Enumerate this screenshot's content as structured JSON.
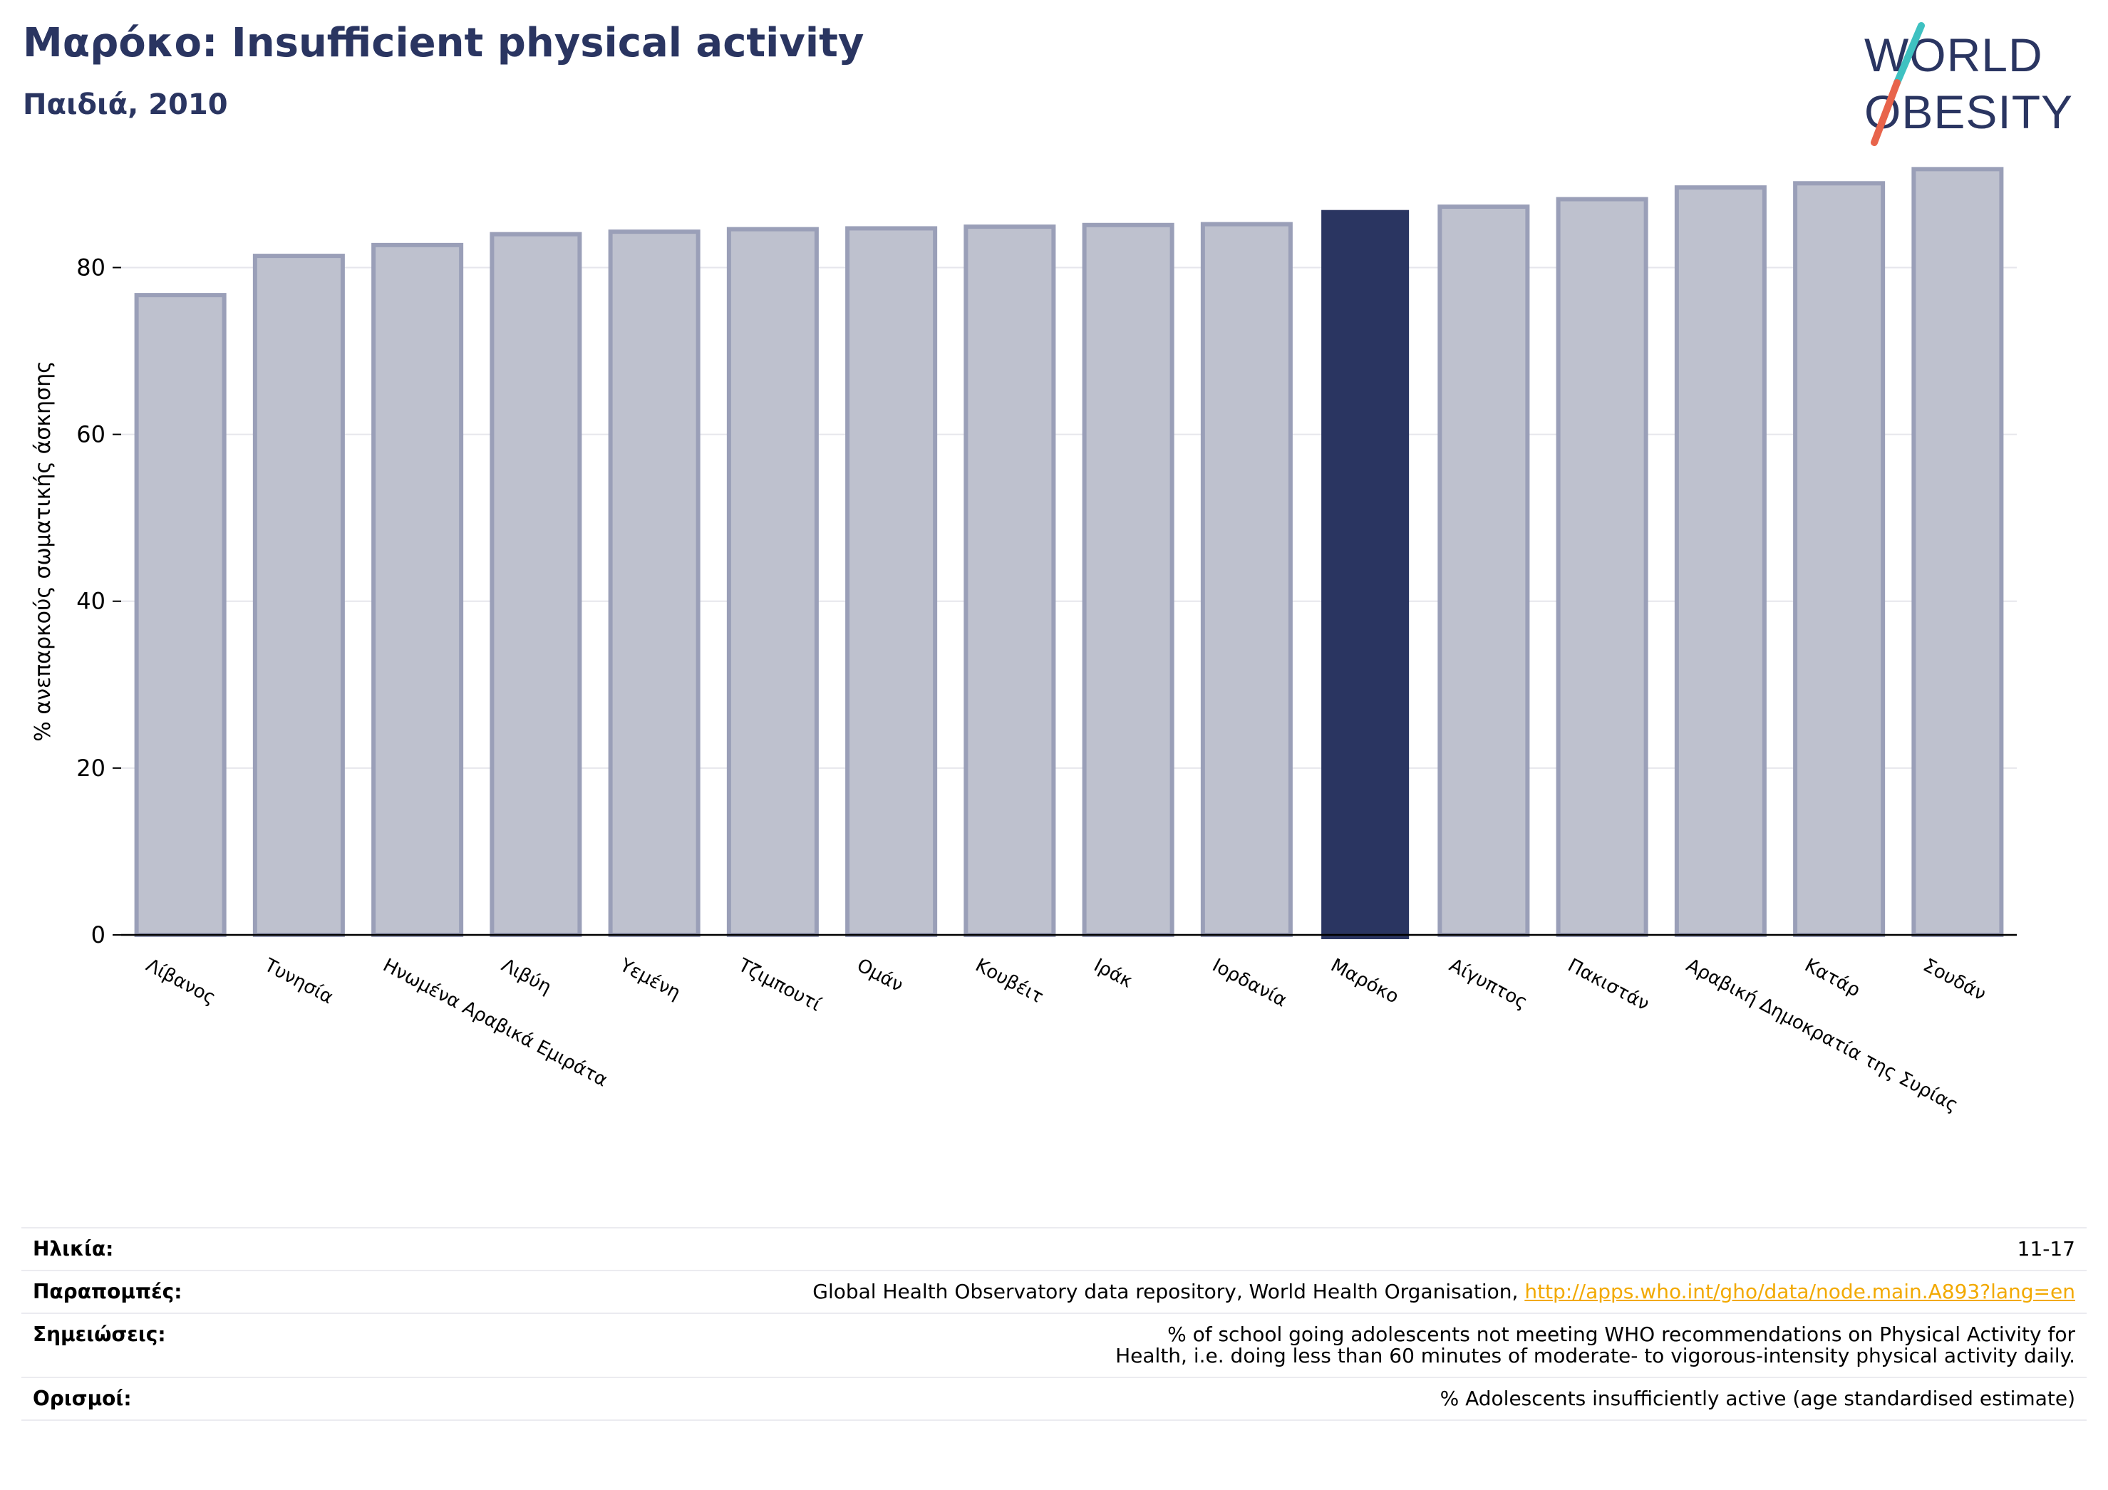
{
  "header": {
    "title": "Μαρόκο: Insufficient physical activity",
    "subtitle": "Παιδιά, 2010"
  },
  "logo": {
    "line1": "WORLD",
    "line2": "OBESITY",
    "colors": {
      "text": "#2a3561",
      "slash_teal": "#3ec1c1",
      "slash_orange": "#e8644b"
    }
  },
  "chart_data": {
    "type": "bar",
    "ylabel": "% ανεπαρκούς σωματικής άσκησης",
    "ylim": [
      0,
      92
    ],
    "yticks": [
      0,
      20,
      40,
      60,
      80
    ],
    "grid": true,
    "categories": [
      "Λίβανος",
      "Τυνησία",
      "Ηνωμένα Αραβικά Εμιράτα",
      "Λιβύη",
      "Υεμένη",
      "Τζιμπουτί",
      "Ομάν",
      "Κουβέιτ",
      "Ιράκ",
      "Ιορδανία",
      "Μαρόκο",
      "Αίγυπτος",
      "Πακιστάν",
      "Αραβική Δημοκρατία της Συρίας",
      "Κατάρ",
      "Σουδάν"
    ],
    "values": [
      76.7,
      81.4,
      82.7,
      84.0,
      84.3,
      84.6,
      84.7,
      84.9,
      85.1,
      85.2,
      86.9,
      87.3,
      88.2,
      89.6,
      90.1,
      91.8
    ],
    "highlight": "Μαρόκο",
    "colors": {
      "bar": "#bec1ce",
      "bar_edge": "#9a9fb8",
      "highlight": "#2a3561"
    }
  },
  "info_table": {
    "rows": [
      {
        "key": "Ηλικία:",
        "value": "11-17"
      },
      {
        "key": "Παραπομπές:",
        "value": "Global Health Observatory data repository, World Health Organisation, ",
        "link": "http://apps.who.int/gho/data/node.main.A893?lang=en"
      },
      {
        "key": "Σημειώσεις:",
        "value": "% of school going adolescents not meeting WHO recommendations on Physical Activity for Health, i.e. doing less than 60 minutes of moderate- to vigorous-intensity physical activity daily."
      },
      {
        "key": "Ορισμοί:",
        "value": "% Adolescents insufficiently active (age standardised estimate)"
      }
    ]
  }
}
